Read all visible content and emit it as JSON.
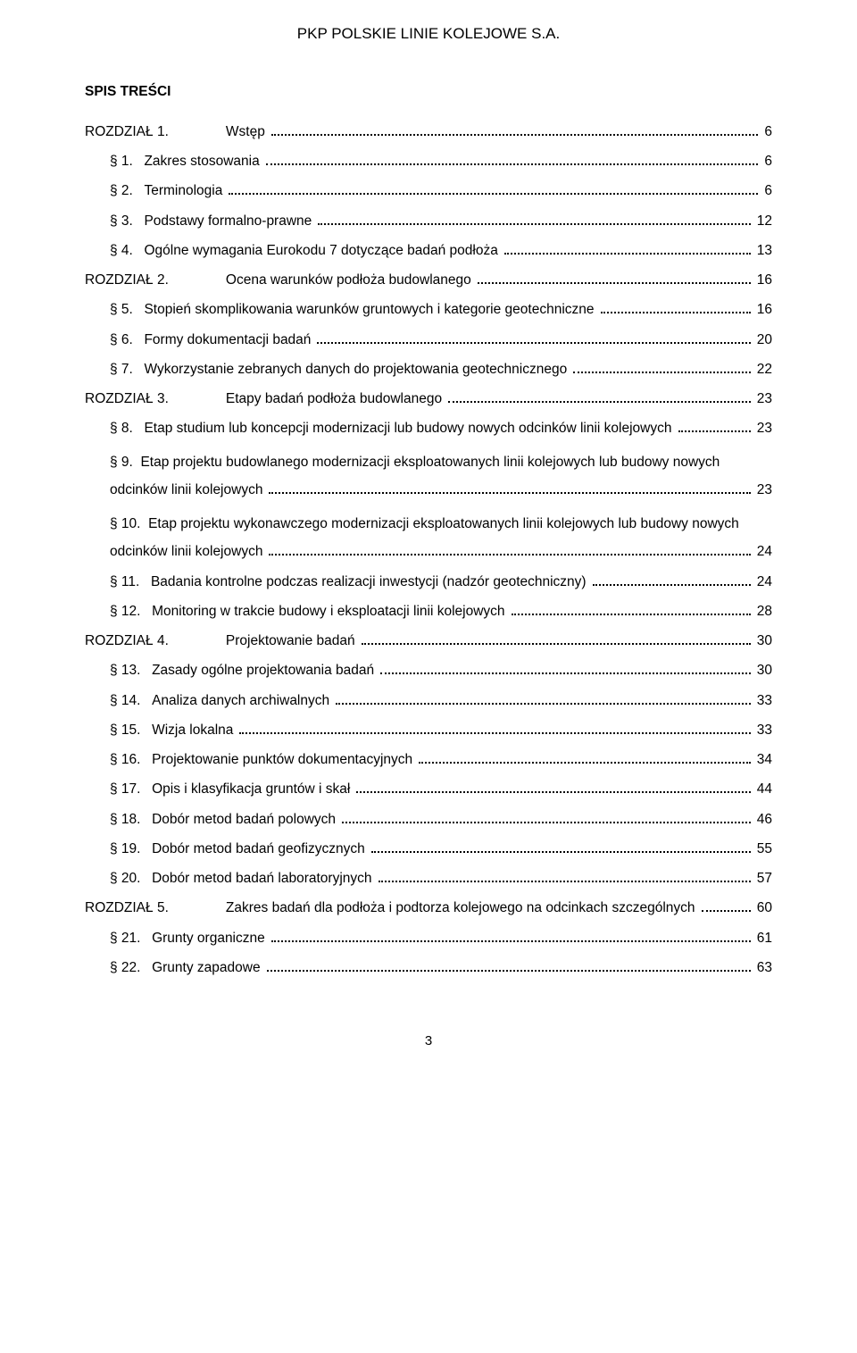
{
  "org_header": "PKP POLSKIE LINIE KOLEJOWE S.A.",
  "spis_tresci": "SPIS TREŚCI",
  "page_number": "3",
  "toc": [
    {
      "type": "chapter",
      "label": "ROZDZIAŁ 1.",
      "title": "Wstęp",
      "page": "6"
    },
    {
      "type": "sub",
      "label": "§ 1.",
      "title": "Zakres stosowania",
      "page": "6"
    },
    {
      "type": "sub",
      "label": "§ 2.",
      "title": "Terminologia",
      "page": "6"
    },
    {
      "type": "sub",
      "label": "§ 3.",
      "title": "Podstawy formalno-prawne",
      "page": "12"
    },
    {
      "type": "sub",
      "label": "§ 4.",
      "title": "Ogólne wymagania Eurokodu 7 dotyczące badań podłoża",
      "page": "13"
    },
    {
      "type": "chapter",
      "label": "ROZDZIAŁ 2.",
      "title": "Ocena warunków podłoża budowlanego",
      "page": "16"
    },
    {
      "type": "sub",
      "label": "§ 5.",
      "title": "Stopień skomplikowania warunków gruntowych i kategorie geotechniczne",
      "page": "16"
    },
    {
      "type": "sub",
      "label": "§ 6.",
      "title": "Formy dokumentacji badań",
      "page": "20"
    },
    {
      "type": "sub",
      "label": "§ 7.",
      "title": "Wykorzystanie zebranych danych do projektowania geotechnicznego",
      "page": "22"
    },
    {
      "type": "chapter",
      "label": "ROZDZIAŁ 3.",
      "title": "Etapy badań podłoża budowlanego",
      "page": "23"
    },
    {
      "type": "sub",
      "label": "§ 8.",
      "title": "Etap studium lub koncepcji modernizacji lub budowy nowych odcinków linii kolejowych",
      "page": "23"
    },
    {
      "type": "sub-multi",
      "label": "§ 9.",
      "first": "Etap projektu budowlanego modernizacji eksploatowanych linii kolejowych lub budowy nowych",
      "tail": "odcinków linii kolejowych",
      "page": "23"
    },
    {
      "type": "sub-multi",
      "label": "§ 10.",
      "first": "Etap projektu wykonawczego modernizacji eksploatowanych linii kolejowych lub budowy nowych",
      "tail": "odcinków linii kolejowych",
      "page": "24"
    },
    {
      "type": "sub",
      "label": "§ 11.",
      "title": "Badania kontrolne podczas realizacji inwestycji (nadzór geotechniczny)",
      "page": "24"
    },
    {
      "type": "sub",
      "label": "§ 12.",
      "title": "Monitoring w trakcie budowy i eksploatacji linii kolejowych",
      "page": "28"
    },
    {
      "type": "chapter",
      "label": "ROZDZIAŁ 4.",
      "title": "Projektowanie badań",
      "page": "30"
    },
    {
      "type": "sub",
      "label": "§ 13.",
      "title": "Zasady ogólne projektowania badań",
      "page": "30"
    },
    {
      "type": "sub",
      "label": "§ 14.",
      "title": "Analiza danych archiwalnych",
      "page": "33"
    },
    {
      "type": "sub",
      "label": "§ 15.",
      "title": "Wizja lokalna",
      "page": "33"
    },
    {
      "type": "sub",
      "label": "§ 16.",
      "title": "Projektowanie punktów dokumentacyjnych",
      "page": "34"
    },
    {
      "type": "sub",
      "label": "§ 17.",
      "title": "Opis i klasyfikacja gruntów i skał",
      "page": "44"
    },
    {
      "type": "sub",
      "label": "§ 18.",
      "title": "Dobór metod badań polowych",
      "page": "46"
    },
    {
      "type": "sub",
      "label": "§ 19.",
      "title": "Dobór metod badań geofizycznych",
      "page": "55"
    },
    {
      "type": "sub",
      "label": "§ 20.",
      "title": "Dobór metod badań laboratoryjnych",
      "page": "57"
    },
    {
      "type": "chapter",
      "label": "ROZDZIAŁ 5.",
      "title": "Zakres badań dla podłoża i podtorza kolejowego na odcinkach szczególnych",
      "page": "60"
    },
    {
      "type": "sub",
      "label": "§ 21.",
      "title": "Grunty organiczne",
      "page": "61"
    },
    {
      "type": "sub",
      "label": "§ 22.",
      "title": "Grunty zapadowe",
      "page": "63"
    }
  ]
}
